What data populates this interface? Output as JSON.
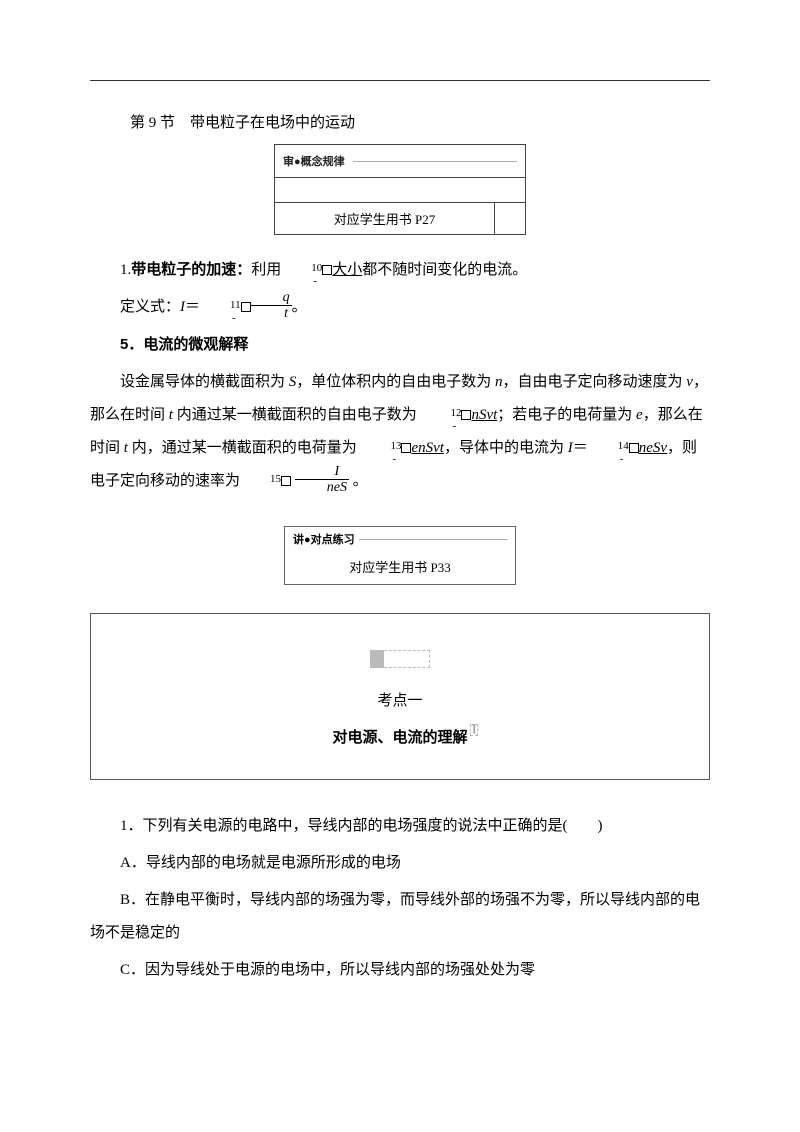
{
  "header": {
    "section_title": "第 9 节　带电粒子在电场中的运动"
  },
  "concept_box": {
    "badge": "审●概念规律",
    "ref": "对应学生用书 P27"
  },
  "body": {
    "p1_lead_num": "1.",
    "p1_lead_bold": "带电粒子的加速：",
    "p1_rest_a": "利用",
    "p1_blank10_num": "10",
    "p1_blank10_text": "大小",
    "p1_rest_b": "都不随时间变化的电流。",
    "p2_a": "定义式：",
    "p2_I": "I",
    "p2_eq": "＝",
    "p2_blank11_num": "11",
    "p2_frac_num": "q",
    "p2_frac_den": "t",
    "p2_end": "。",
    "p3": "5．电流的微观解释",
    "p4_a": "设金属导体的横截面积为 ",
    "p4_S": "S",
    "p4_b": "，单位体积内的自由电子数为 ",
    "p4_n": "n",
    "p4_c": "，自由电子定向移动速度为 ",
    "p4_v": "v",
    "p4_d": "，那么在时间 ",
    "p4_t": "t",
    "p4_e": " 内通过某一横截面积的自由电子数为 ",
    "p4_blank12_num": "12",
    "p4_blank12_text": "nSvt",
    "p4_f": "；若电子的电荷量为 ",
    "p4_e2": "e",
    "p4_g": "，那么在时间 ",
    "p4_h": " 内，通过某一横截面积的电荷量为 ",
    "p4_blank13_num": "13",
    "p4_blank13_text": "enSvt",
    "p4_i": "，导体中的电流为 ",
    "p4_I2": "I",
    "p4_eq2": "＝",
    "p4_blank14_num": "14",
    "p4_blank14_text": "neSv",
    "p4_j": "，则电子定向移动的速率为",
    "p4_blank15_num": "15",
    "p4_frac2_num": "I",
    "p4_frac2_den": "neS",
    "p4_k": " 。"
  },
  "practice_box": {
    "badge": "讲●对点练习",
    "ref": "对应学生用书 P33"
  },
  "exam": {
    "point": "考点一",
    "topic": "对电源、电流的理解"
  },
  "questions": {
    "q1": "1．下列有关电源的电路中，导线内部的电场强度的说法中正确的是(　　)",
    "qa": "A．导线内部的电场就是电源所形成的电场",
    "qb": "B．在静电平衡时，导线内部的场强为零，而导线外部的场强不为零，所以导线内部的电场不是稳定的",
    "qc": "C．因为导线处于电源的电场中，所以导线内部的场强处处为零"
  },
  "watermark": ""
}
